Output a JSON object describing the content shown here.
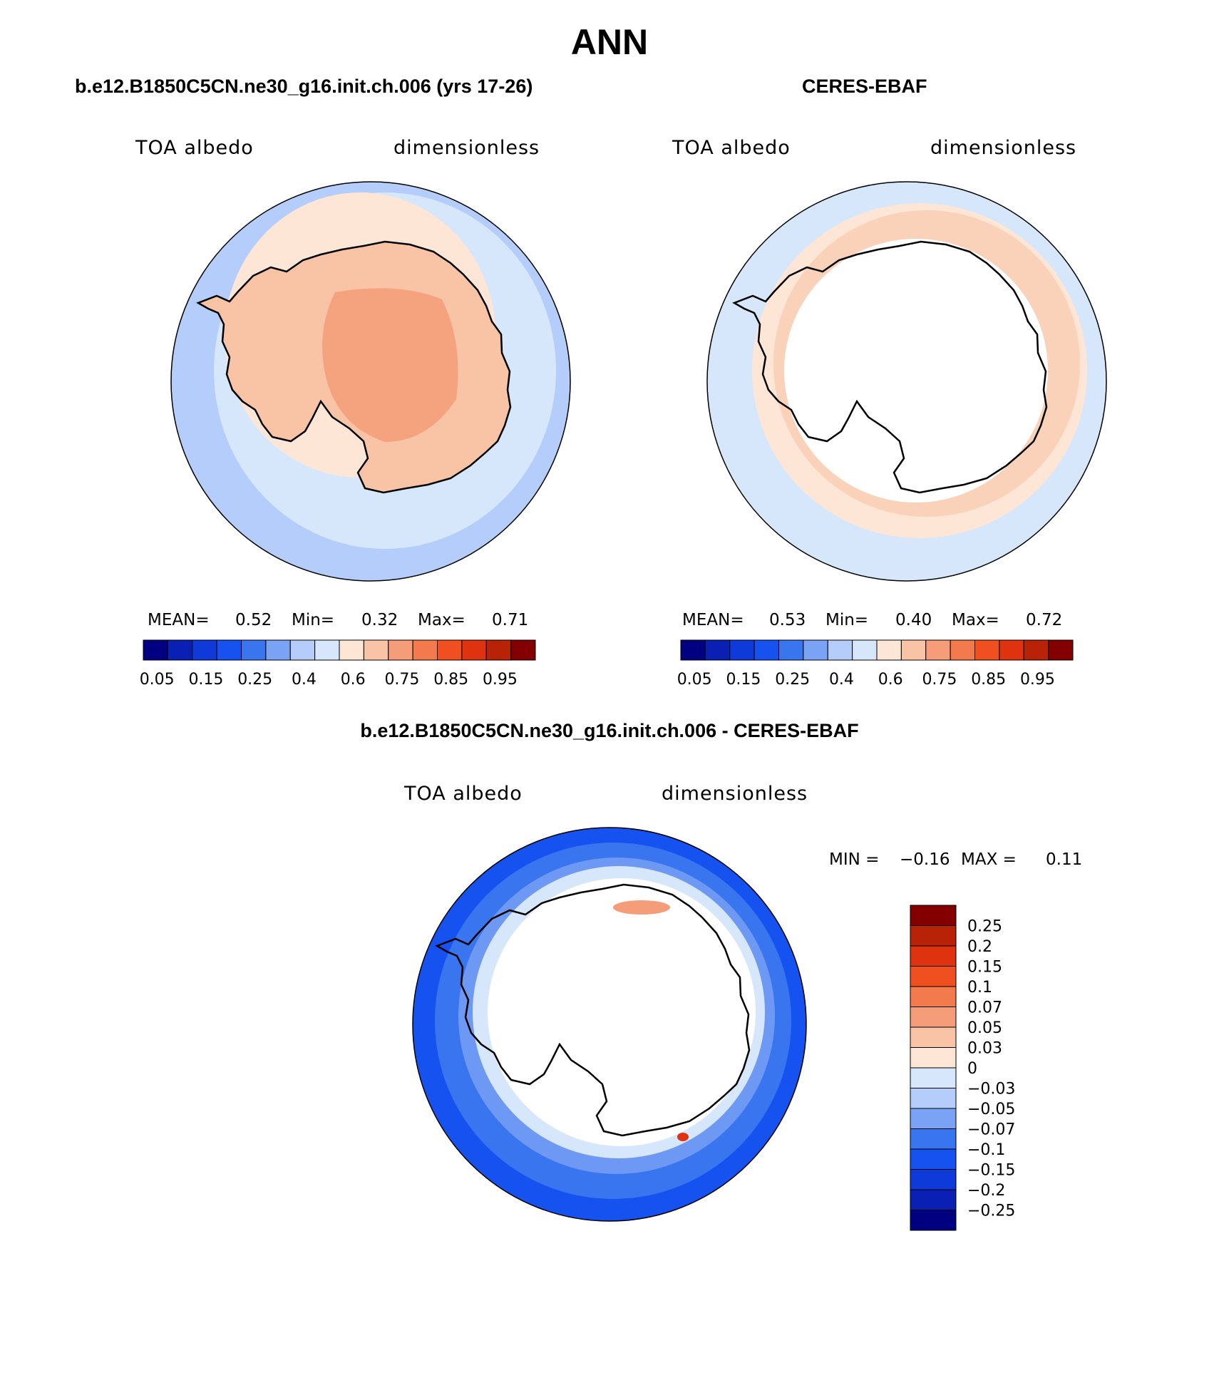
{
  "title": "ANN",
  "panels": [
    {
      "title": "b.e12.B1850C5CN.ne30_g16.init.ch.006 (yrs 17-26)",
      "left_label": "TOA albedo",
      "right_label": "dimensionless",
      "stats": {
        "mean_label": "MEAN=",
        "mean": "0.52",
        "min_label": "Min=",
        "min": "0.32",
        "max_label": "Max=",
        "max": "0.71"
      }
    },
    {
      "title": "CERES-EBAF",
      "left_label": "TOA albedo",
      "right_label": "dimensionless",
      "stats": {
        "mean_label": "MEAN=",
        "mean": "0.53",
        "min_label": "Min=",
        "min": "0.40",
        "max_label": "Max=",
        "max": "0.72"
      }
    }
  ],
  "abs_colorbar": {
    "colors": [
      "#000080",
      "#0a1fb3",
      "#0d3ad9",
      "#1652f0",
      "#3a75f0",
      "#7ba3f5",
      "#b4cdfa",
      "#d6e7fc",
      "#fde6d5",
      "#f9c3a6",
      "#f59d78",
      "#f27a4d",
      "#f04f1f",
      "#df3310",
      "#b82207",
      "#840000"
    ],
    "ticks": [
      "0.05",
      "0.15",
      "0.25",
      "0.4",
      "0.6",
      "0.75",
      "0.85",
      "0.95"
    ]
  },
  "difference": {
    "title": "b.e12.B1850C5CN.ne30_g16.init.ch.006 - CERES-EBAF",
    "left_label": "TOA albedo",
    "right_label": "dimensionless",
    "min_label": "MIN =",
    "min": "−0.16",
    "max_label": "MAX =",
    "max": "0.11",
    "colorbar": {
      "colors_top_to_bottom": [
        "#840000",
        "#b82207",
        "#df3310",
        "#f04f1f",
        "#f27a4d",
        "#f59d78",
        "#f9c3a6",
        "#fde6d5",
        "#d6e7fc",
        "#b4cdfa",
        "#7ba3f5",
        "#3a75f0",
        "#1652f0",
        "#0d3ad9",
        "#0a1fb3",
        "#000080"
      ],
      "ticks_top_to_bottom": [
        "0.25",
        "0.2",
        "0.15",
        "0.1",
        "0.07",
        "0.05",
        "0.03",
        "0",
        "−0.03",
        "−0.05",
        "−0.07",
        "−0.1",
        "−0.15",
        "−0.2",
        "−0.25"
      ]
    }
  }
}
